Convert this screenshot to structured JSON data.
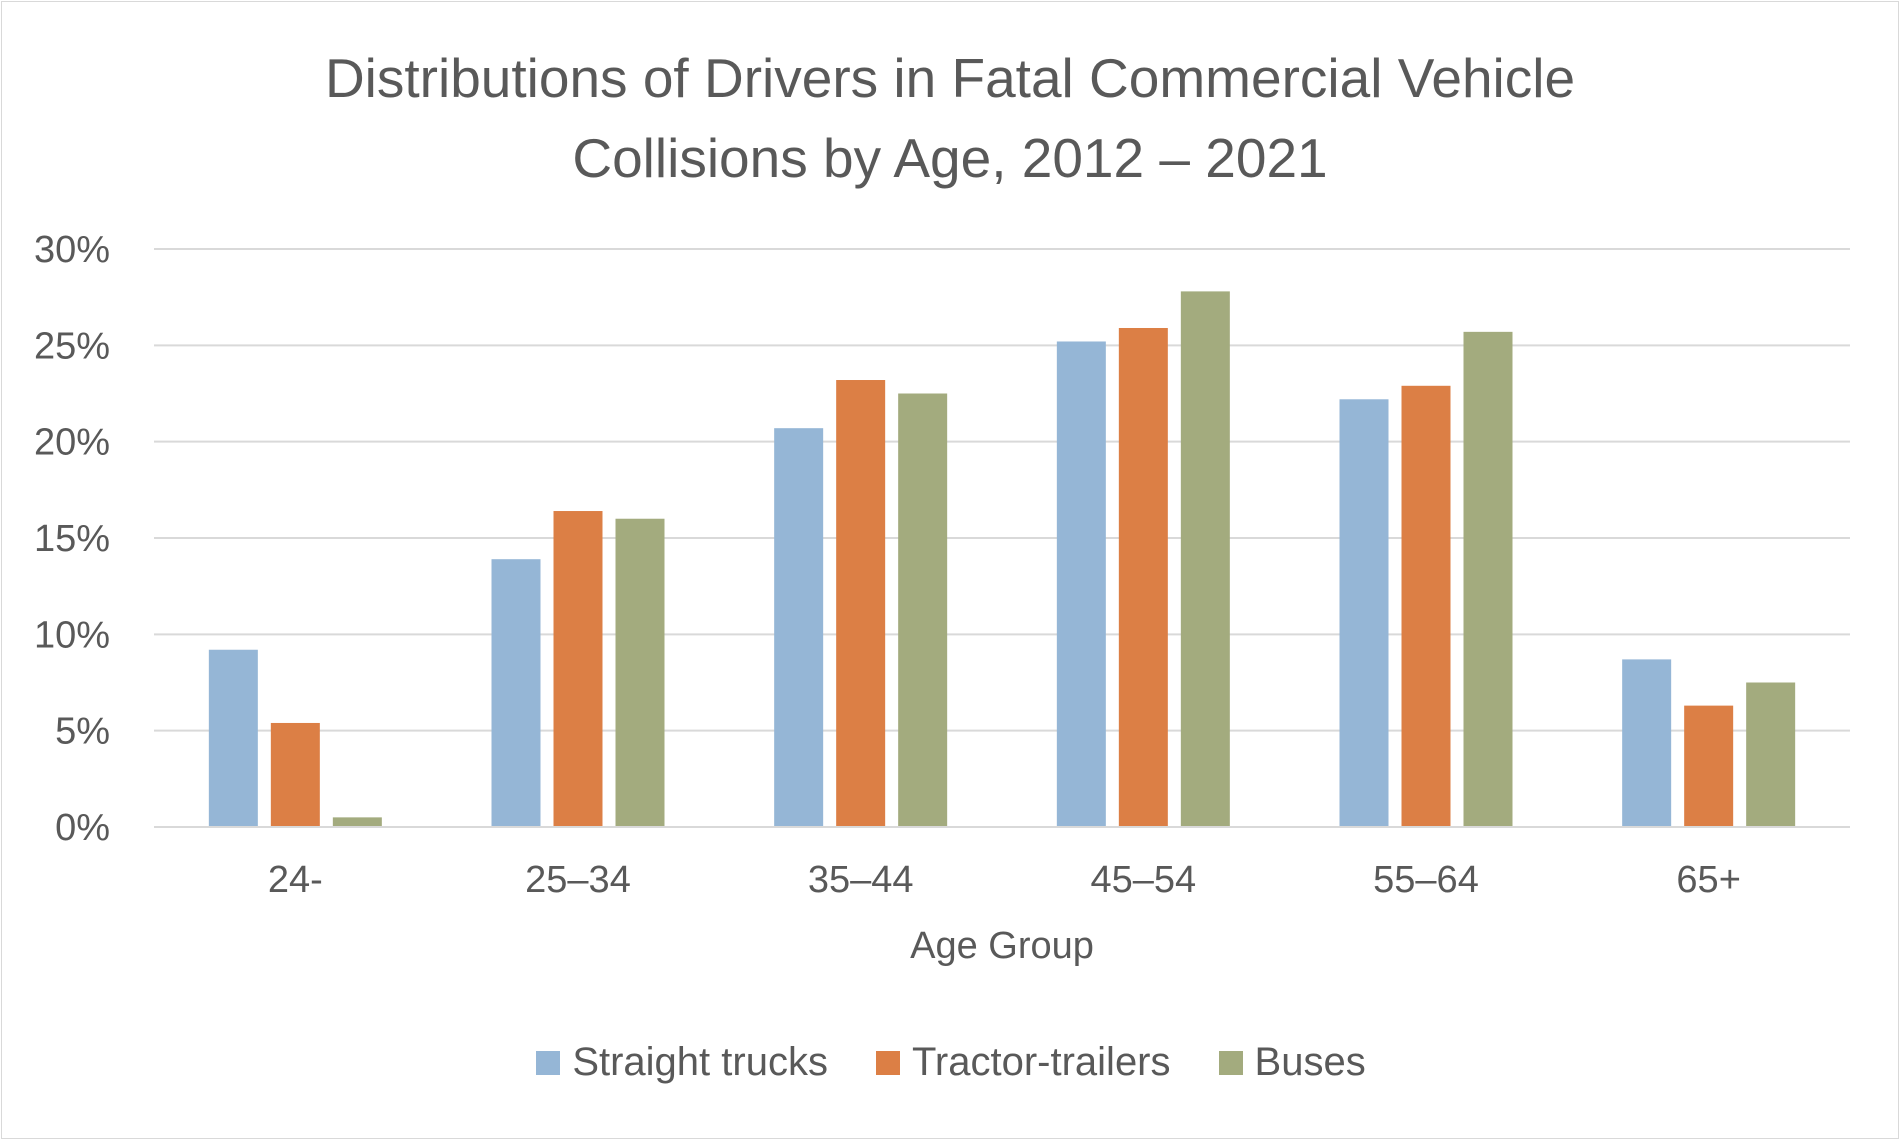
{
  "colors": {
    "straight_trucks": "#95b6d6",
    "tractor_trailers": "#dc7f45",
    "buses": "#a3ab7e",
    "gridline": "#d9d9d9",
    "text": "#595959"
  },
  "chart_data": {
    "type": "bar",
    "title_lines": [
      "Distributions of Drivers in Fatal Commercial Vehicle",
      "Collisions by Age, 2012 – 2021"
    ],
    "xlabel": "Age Group",
    "ylabel": "",
    "categories": [
      "24-",
      "25–34",
      "35–44",
      "45–54",
      "55–64",
      "65+"
    ],
    "series": [
      {
        "name": "Straight trucks",
        "values": [
          9.2,
          13.9,
          20.7,
          25.2,
          22.2,
          8.7
        ]
      },
      {
        "name": "Tractor-trailers",
        "values": [
          5.4,
          16.4,
          23.2,
          25.9,
          22.9,
          6.3
        ]
      },
      {
        "name": "Buses",
        "values": [
          0.5,
          16.0,
          22.5,
          27.8,
          25.7,
          7.5
        ]
      }
    ],
    "ylim": [
      0,
      30
    ],
    "yticks": [
      "0%",
      "5%",
      "10%",
      "15%",
      "20%",
      "25%",
      "30%"
    ],
    "ytick_values": [
      0,
      5,
      10,
      15,
      20,
      25,
      30
    ],
    "grid": true,
    "legend_position": "bottom"
  }
}
